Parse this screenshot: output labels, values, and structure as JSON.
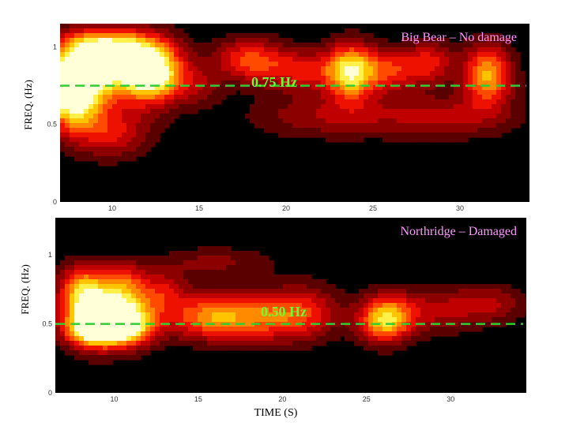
{
  "colors": {
    "background": "#000000",
    "title": "#ff99ff",
    "annotation": "#66ff33",
    "reference_line": "#33cc33",
    "colormap": [
      "#2a0000",
      "#5a0000",
      "#8c0000",
      "#c00000",
      "#ee1100",
      "#ff4a00",
      "#ff8a00",
      "#ffc400",
      "#fff04a",
      "#ffffd8"
    ]
  },
  "chart_data": [
    {
      "type": "heatmap",
      "title": "Big Bear – No damage",
      "ylabel": "FREQ. (Hz)",
      "xlabel": "",
      "xlim": [
        7,
        34
      ],
      "ylim": [
        0,
        1.15
      ],
      "xticks": [
        10,
        15,
        20,
        25,
        30
      ],
      "xtick_labels": [
        "10",
        "15",
        "20",
        "25",
        "30"
      ],
      "yticks": [
        0,
        0.5,
        1
      ],
      "ytick_labels": [
        "0",
        "0.5",
        "1"
      ],
      "reference_freq": 0.75,
      "reference_label": "0.75 Hz",
      "blobs": [
        {
          "t": 7.7,
          "f": 0.72,
          "st": 1.2,
          "sf": 0.17,
          "a": 1.25
        },
        {
          "t": 10.2,
          "f": 0.88,
          "st": 2.0,
          "sf": 0.14,
          "a": 0.95
        },
        {
          "t": 12.4,
          "f": 0.83,
          "st": 1.2,
          "sf": 0.14,
          "a": 0.85
        },
        {
          "t": 9.5,
          "f": 1.02,
          "st": 1.8,
          "sf": 0.07,
          "a": 0.5
        },
        {
          "t": 17.8,
          "f": 0.92,
          "st": 1.4,
          "sf": 0.1,
          "a": 0.55
        },
        {
          "t": 20.8,
          "f": 0.85,
          "st": 1.6,
          "sf": 0.1,
          "a": 0.45
        },
        {
          "t": 23.7,
          "f": 0.84,
          "st": 1.0,
          "sf": 0.13,
          "a": 0.9
        },
        {
          "t": 26.0,
          "f": 0.85,
          "st": 1.2,
          "sf": 0.1,
          "a": 0.5
        },
        {
          "t": 28.3,
          "f": 0.9,
          "st": 1.0,
          "sf": 0.1,
          "a": 0.45
        },
        {
          "t": 31.6,
          "f": 0.82,
          "st": 1.0,
          "sf": 0.14,
          "a": 0.8
        },
        {
          "t": 15.0,
          "f": 0.75,
          "st": 1.0,
          "sf": 0.1,
          "a": 0.25
        },
        {
          "t": 10.0,
          "f": 0.45,
          "st": 1.6,
          "sf": 0.12,
          "a": 0.45
        },
        {
          "t": 22.0,
          "f": 0.55,
          "st": 3.0,
          "sf": 0.1,
          "a": 0.3
        },
        {
          "t": 29.0,
          "f": 0.55,
          "st": 3.0,
          "sf": 0.1,
          "a": 0.35
        }
      ]
    },
    {
      "type": "heatmap",
      "title": "Northridge – Damaged",
      "ylabel": "FREQ. (Hz)",
      "xlabel": "TIME (S)",
      "xlim": [
        6.5,
        34.5
      ],
      "ylim": [
        0,
        1.27
      ],
      "xticks": [
        10,
        15,
        20,
        25,
        30
      ],
      "xtick_labels": [
        "10",
        "15",
        "20",
        "25",
        "30"
      ],
      "yticks": [
        0,
        0.5,
        1
      ],
      "ytick_labels": [
        "0",
        "0.5",
        "1"
      ],
      "reference_freq": 0.5,
      "reference_label": "0.50 Hz",
      "blobs": [
        {
          "t": 8.6,
          "f": 0.55,
          "st": 1.2,
          "sf": 0.15,
          "a": 1.0
        },
        {
          "t": 10.7,
          "f": 0.55,
          "st": 1.3,
          "sf": 0.14,
          "a": 1.0
        },
        {
          "t": 9.5,
          "f": 0.45,
          "st": 1.5,
          "sf": 0.07,
          "a": 0.6
        },
        {
          "t": 8.0,
          "f": 0.78,
          "st": 1.0,
          "sf": 0.12,
          "a": 0.55
        },
        {
          "t": 10.5,
          "f": 0.82,
          "st": 1.0,
          "sf": 0.1,
          "a": 0.45
        },
        {
          "t": 15.5,
          "f": 0.55,
          "st": 1.8,
          "sf": 0.12,
          "a": 0.6
        },
        {
          "t": 19.0,
          "f": 0.55,
          "st": 2.2,
          "sf": 0.13,
          "a": 0.55
        },
        {
          "t": 21.5,
          "f": 0.6,
          "st": 1.5,
          "sf": 0.15,
          "a": 0.3
        },
        {
          "t": 26.1,
          "f": 0.53,
          "st": 1.1,
          "sf": 0.12,
          "a": 0.85
        },
        {
          "t": 29.0,
          "f": 0.6,
          "st": 2.0,
          "sf": 0.12,
          "a": 0.35
        },
        {
          "t": 32.5,
          "f": 0.65,
          "st": 1.5,
          "sf": 0.1,
          "a": 0.3
        },
        {
          "t": 16.0,
          "f": 0.95,
          "st": 2.5,
          "sf": 0.08,
          "a": 0.25
        },
        {
          "t": 13.0,
          "f": 0.75,
          "st": 1.0,
          "sf": 0.1,
          "a": 0.35
        }
      ]
    }
  ]
}
